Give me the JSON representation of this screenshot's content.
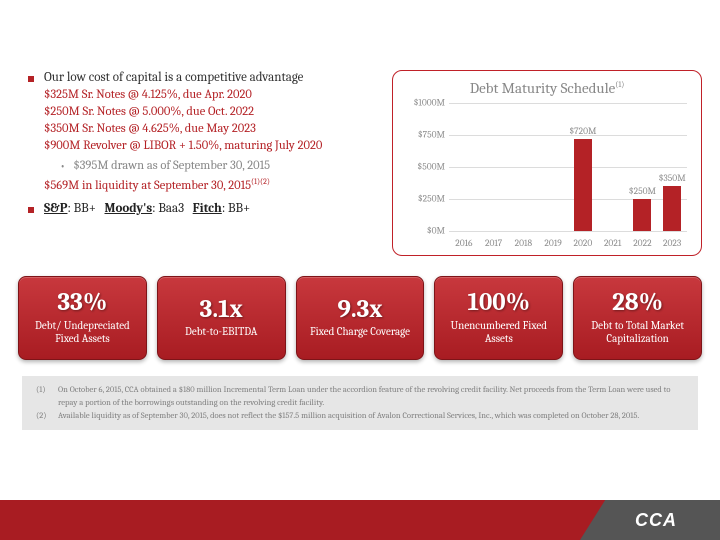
{
  "bullet1": "Our low cost of capital is a competitive advantage",
  "notes": [
    "$325M Sr. Notes @ 4.125%, due Apr. 2020",
    "$250M Sr. Notes @ 5.000%, due Oct. 2022",
    "$350M Sr. Notes @ 4.625%, due May 2023",
    "$900M Revolver @ LIBOR + 1.50%, maturing July 2020"
  ],
  "drawn": "$395M drawn as of September 30, 2015",
  "liquidity_pre": "$569M in liquidity at September 30, 2015",
  "liquidity_sup": "(1)(2)",
  "ratings_html": {
    "sp": "S&P",
    "sp_v": ": BB+ ",
    "m": "Moody's",
    "m_v": ": Baa3 ",
    "f": "Fitch",
    "f_v": ": BB+"
  },
  "chart": {
    "title": "Debt Maturity Schedule",
    "title_sup": "(1)",
    "y_max": 1000,
    "y_ticks": [
      "$1000M",
      "$750M",
      "$500M",
      "$250M",
      "$0M"
    ],
    "x_labels": [
      "2016",
      "2017",
      "2018",
      "2019",
      "2020",
      "2021",
      "2022",
      "2023"
    ],
    "bars": [
      {
        "year": "2016",
        "value": 0,
        "label": ""
      },
      {
        "year": "2017",
        "value": 0,
        "label": ""
      },
      {
        "year": "2018",
        "value": 0,
        "label": ""
      },
      {
        "year": "2019",
        "value": 0,
        "label": ""
      },
      {
        "year": "2020",
        "value": 720,
        "label": "$720M"
      },
      {
        "year": "2021",
        "value": 0,
        "label": ""
      },
      {
        "year": "2022",
        "value": 250,
        "label": "$250M"
      },
      {
        "year": "2023",
        "value": 350,
        "label": "$350M"
      }
    ],
    "bar_color": "#b42226"
  },
  "kpis": [
    {
      "value": "33%",
      "label": "Debt/ Undepreciated Fixed Assets"
    },
    {
      "value": "3.1x",
      "label": "Debt-to-EBITDA"
    },
    {
      "value": "9.3x",
      "label": "Fixed Charge Coverage"
    },
    {
      "value": "100%",
      "label": "Unencumbered Fixed Assets"
    },
    {
      "value": "28%",
      "label": "Debt to Total Market Capitalization"
    }
  ],
  "footnotes": [
    {
      "n": "(1)",
      "t": "On October 6, 2015, CCA obtained a $180 million Incremental Term Loan under the accordion feature of the revolving credit facility.  Net proceeds from the Term Loan were used to repay a portion of the borrowings outstanding on the revolving credit facility."
    },
    {
      "n": "(2)",
      "t": "Available liquidity as of September 30, 2015, does not reflect the $157.5 million acquisition of Avalon Correctional Services, Inc., which was completed on October 28, 2015."
    }
  ],
  "logo": "CCA"
}
